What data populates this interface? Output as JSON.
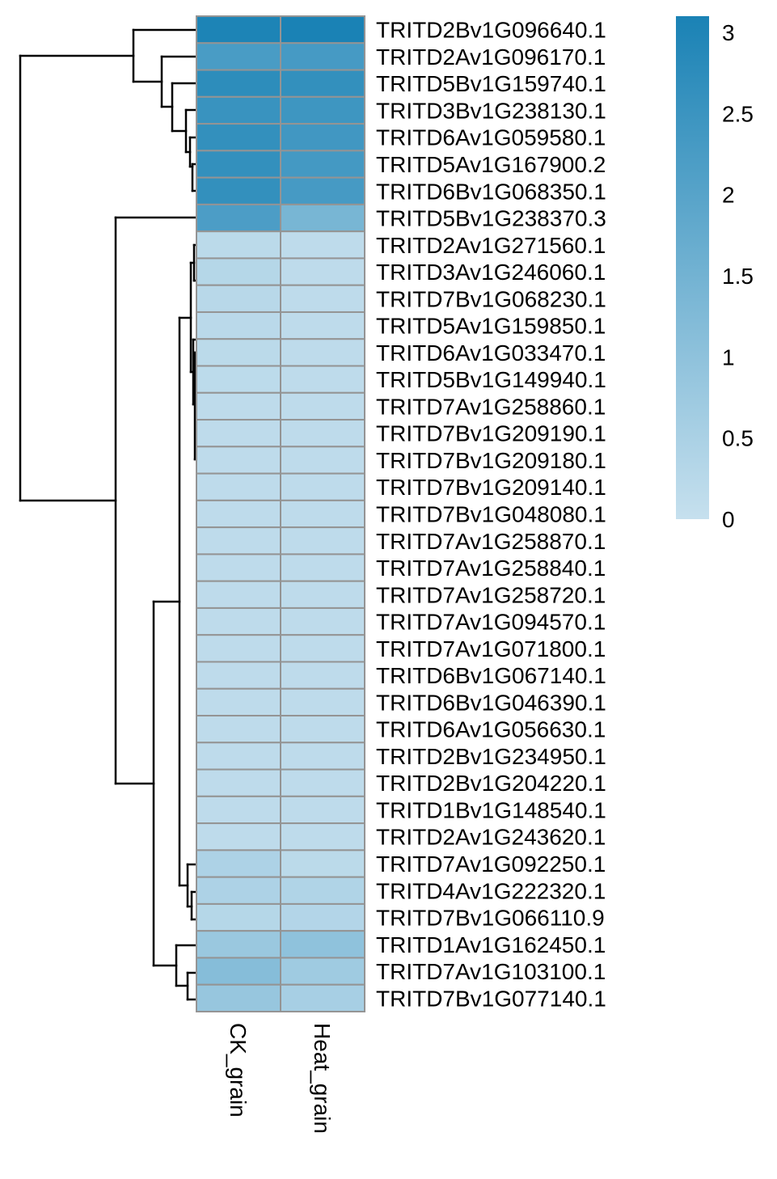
{
  "chart_data": {
    "type": "heatmap",
    "columns": [
      "CK_grain",
      "Heat_grain"
    ],
    "rows": [
      {
        "gene": "TRITD2Bv1G096640.1",
        "values": [
          3.05,
          3.1
        ]
      },
      {
        "gene": "TRITD2Av1G096170.1",
        "values": [
          2.25,
          2.3
        ]
      },
      {
        "gene": "TRITD5Bv1G159740.1",
        "values": [
          2.75,
          2.65
        ]
      },
      {
        "gene": "TRITD3Bv1G238130.1",
        "values": [
          2.55,
          2.45
        ]
      },
      {
        "gene": "TRITD6Av1G059580.1",
        "values": [
          2.65,
          2.4
        ]
      },
      {
        "gene": "TRITD5Av1G167900.2",
        "values": [
          2.65,
          2.35
        ]
      },
      {
        "gene": "TRITD6Bv1G068350.1",
        "values": [
          2.65,
          2.3
        ]
      },
      {
        "gene": "TRITD5Bv1G238370.3",
        "values": [
          2.2,
          1.4
        ]
      },
      {
        "gene": "TRITD2Av1G271560.1",
        "values": [
          0.2,
          0.15
        ]
      },
      {
        "gene": "TRITD3Av1G246060.1",
        "values": [
          0.3,
          0.15
        ]
      },
      {
        "gene": "TRITD7Bv1G068230.1",
        "values": [
          0.25,
          0.15
        ]
      },
      {
        "gene": "TRITD5Av1G159850.1",
        "values": [
          0.22,
          0.15
        ]
      },
      {
        "gene": "TRITD6Av1G033470.1",
        "values": [
          0.2,
          0.15
        ]
      },
      {
        "gene": "TRITD5Bv1G149940.1",
        "values": [
          0.18,
          0.15
        ]
      },
      {
        "gene": "TRITD7Av1G258860.1",
        "values": [
          0.15,
          0.15
        ]
      },
      {
        "gene": "TRITD7Bv1G209190.1",
        "values": [
          0.15,
          0.15
        ]
      },
      {
        "gene": "TRITD7Bv1G209180.1",
        "values": [
          0.15,
          0.15
        ]
      },
      {
        "gene": "TRITD7Bv1G209140.1",
        "values": [
          0.15,
          0.15
        ]
      },
      {
        "gene": "TRITD7Bv1G048080.1",
        "values": [
          0.15,
          0.15
        ]
      },
      {
        "gene": "TRITD7Av1G258870.1",
        "values": [
          0.15,
          0.15
        ]
      },
      {
        "gene": "TRITD7Av1G258840.1",
        "values": [
          0.15,
          0.15
        ]
      },
      {
        "gene": "TRITD7Av1G258720.1",
        "values": [
          0.15,
          0.15
        ]
      },
      {
        "gene": "TRITD7Av1G094570.1",
        "values": [
          0.15,
          0.15
        ]
      },
      {
        "gene": "TRITD7Av1G071800.1",
        "values": [
          0.15,
          0.15
        ]
      },
      {
        "gene": "TRITD6Bv1G067140.1",
        "values": [
          0.15,
          0.15
        ]
      },
      {
        "gene": "TRITD6Bv1G046390.1",
        "values": [
          0.15,
          0.15
        ]
      },
      {
        "gene": "TRITD6Av1G056630.1",
        "values": [
          0.15,
          0.15
        ]
      },
      {
        "gene": "TRITD2Bv1G234950.1",
        "values": [
          0.15,
          0.15
        ]
      },
      {
        "gene": "TRITD2Bv1G204220.1",
        "values": [
          0.15,
          0.15
        ]
      },
      {
        "gene": "TRITD1Bv1G148540.1",
        "values": [
          0.15,
          0.15
        ]
      },
      {
        "gene": "TRITD2Av1G243620.1",
        "values": [
          0.15,
          0.15
        ]
      },
      {
        "gene": "TRITD7Av1G092250.1",
        "values": [
          0.45,
          0.2
        ]
      },
      {
        "gene": "TRITD4Av1G222320.1",
        "values": [
          0.45,
          0.4
        ]
      },
      {
        "gene": "TRITD7Bv1G066110.9",
        "values": [
          0.3,
          0.35
        ]
      },
      {
        "gene": "TRITD1Av1G162450.1",
        "values": [
          0.8,
          1.0
        ]
      },
      {
        "gene": "TRITD7Av1G103100.1",
        "values": [
          1.15,
          0.7
        ]
      },
      {
        "gene": "TRITD7Bv1G077140.1",
        "values": [
          0.85,
          0.55
        ]
      }
    ],
    "color_scale": {
      "min": 0,
      "max": 3.1,
      "low_color": "#c6e0ee",
      "high_color": "#1a82b5",
      "ticks": [
        "0",
        "0.5",
        "1",
        "1.5",
        "2",
        "2.5",
        "3"
      ]
    },
    "row_dendrogram": true,
    "legend_position": "right"
  }
}
